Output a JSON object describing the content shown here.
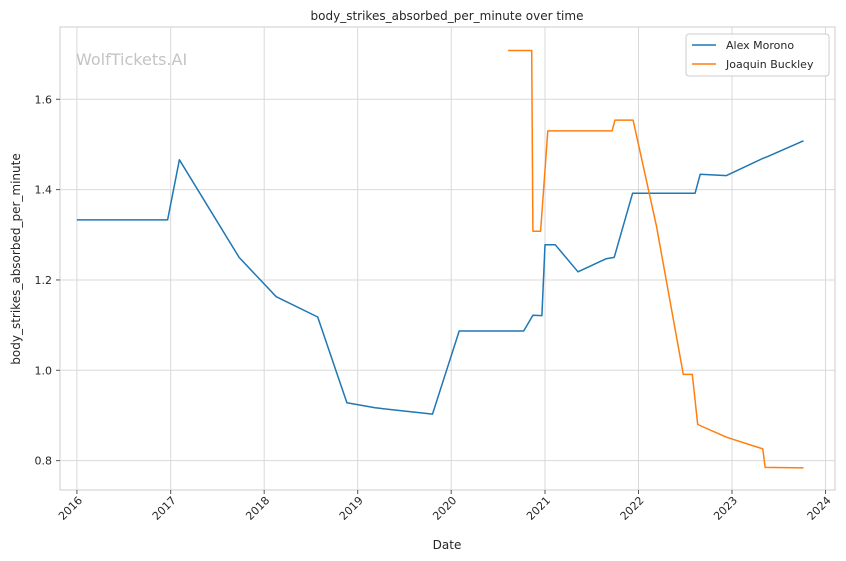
{
  "watermark": "WolfTickets.AI",
  "chart_data": {
    "type": "line",
    "title": "body_strikes_absorbed_per_minute over time",
    "xlabel": "Date",
    "ylabel": "body_strikes_absorbed_per_minute",
    "x_ticks": [
      "2016",
      "2017",
      "2018",
      "2019",
      "2020",
      "2021",
      "2022",
      "2023",
      "2024"
    ],
    "y_ticks": [
      "0.8",
      "1.0",
      "1.2",
      "1.4",
      "1.6"
    ],
    "ylim": [
      0.735,
      1.76
    ],
    "xlim": [
      "2015-10-27",
      "2024-02-07"
    ],
    "grid": true,
    "legend_position": "top-right",
    "series": [
      {
        "name": "Alex Morono",
        "color": "#1f77b4",
        "points": [
          [
            "2016-01-01",
            1.333
          ],
          [
            "2016-12-20",
            1.333
          ],
          [
            "2017-02-04",
            1.466
          ],
          [
            "2017-09-25",
            1.25
          ],
          [
            "2018-02-17",
            1.163
          ],
          [
            "2018-07-29",
            1.118
          ],
          [
            "2018-11-20",
            0.928
          ],
          [
            "2019-03-10",
            0.917
          ],
          [
            "2019-10-20",
            0.903
          ],
          [
            "2020-02-01",
            1.087
          ],
          [
            "2020-10-10",
            1.087
          ],
          [
            "2020-11-15",
            1.122
          ],
          [
            "2020-12-20",
            1.121
          ],
          [
            "2021-01-01",
            1.278
          ],
          [
            "2021-02-10",
            1.278
          ],
          [
            "2021-05-10",
            1.218
          ],
          [
            "2021-08-28",
            1.247
          ],
          [
            "2021-09-28",
            1.25
          ],
          [
            "2021-12-09",
            1.392
          ],
          [
            "2022-08-10",
            1.392
          ],
          [
            "2022-08-30",
            1.434
          ],
          [
            "2022-12-10",
            1.431
          ],
          [
            "2023-05-01",
            1.469
          ],
          [
            "2023-05-20",
            1.473
          ],
          [
            "2023-10-07",
            1.508
          ]
        ]
      },
      {
        "name": "Joaquin Buckley",
        "color": "#ff7f0e",
        "points": [
          [
            "2020-08-10",
            1.708
          ],
          [
            "2020-11-10",
            1.708
          ],
          [
            "2020-11-15",
            1.308
          ],
          [
            "2020-12-15",
            1.308
          ],
          [
            "2021-01-12",
            1.53
          ],
          [
            "2021-09-20",
            1.53
          ],
          [
            "2021-10-01",
            1.554
          ],
          [
            "2021-12-11",
            1.554
          ],
          [
            "2022-03-12",
            1.32
          ],
          [
            "2022-06-25",
            0.991
          ],
          [
            "2022-07-30",
            0.991
          ],
          [
            "2022-08-20",
            0.88
          ],
          [
            "2022-12-10",
            0.852
          ],
          [
            "2023-05-01",
            0.826
          ],
          [
            "2023-05-10",
            0.785
          ],
          [
            "2023-10-07",
            0.784
          ]
        ]
      }
    ]
  }
}
